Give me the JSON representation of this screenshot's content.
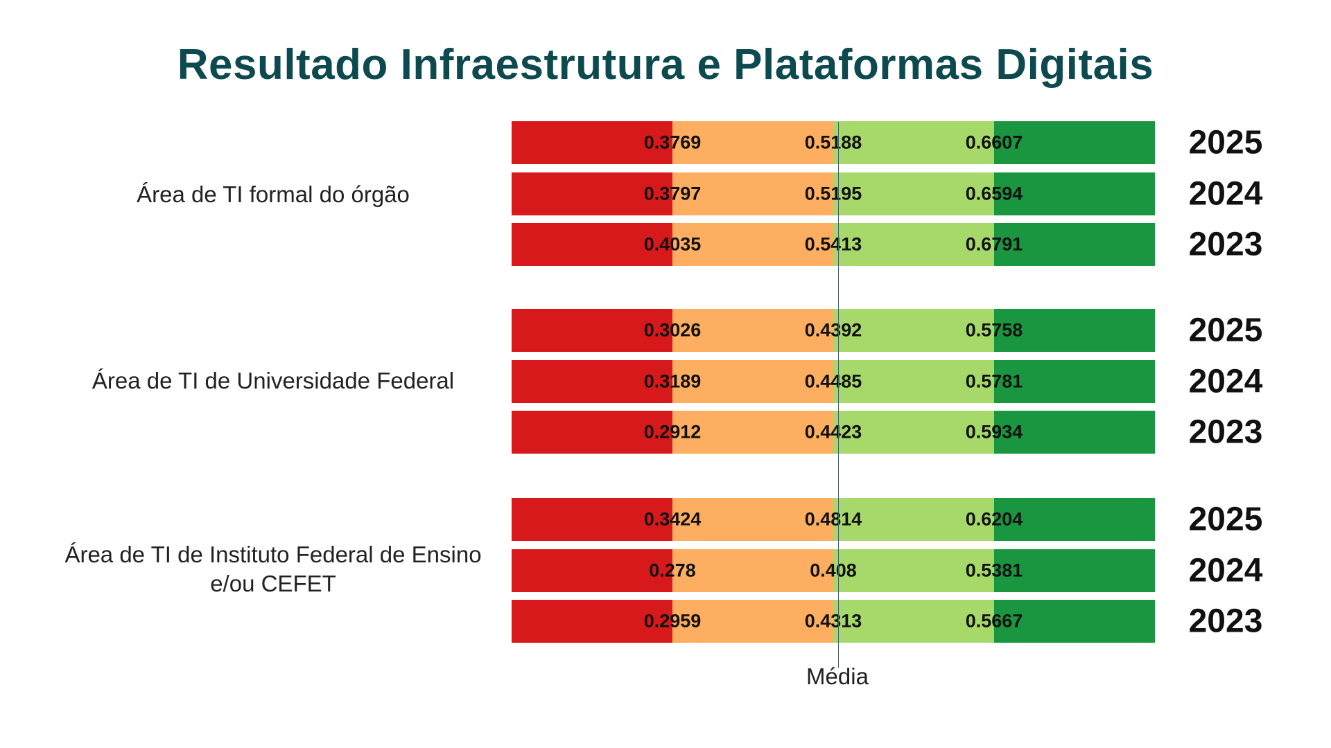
{
  "chart_data": {
    "type": "bar",
    "title": "Resultado Infraestrutura e Plataformas Digitais",
    "median_label": "Média",
    "segment_colors": [
      "#d7191c",
      "#fdae61",
      "#a6d96a",
      "#1a9641"
    ],
    "groups": [
      {
        "label": "Área de TI formal do órgão",
        "rows": [
          {
            "year": "2025",
            "values": [
              "0.3769",
              "0.5188",
              "0.6607"
            ]
          },
          {
            "year": "2024",
            "values": [
              "0.3797",
              "0.5195",
              "0.6594"
            ]
          },
          {
            "year": "2023",
            "values": [
              "0.4035",
              "0.5413",
              "0.6791"
            ]
          }
        ]
      },
      {
        "label": "Área de TI de Universidade Federal",
        "rows": [
          {
            "year": "2025",
            "values": [
              "0.3026",
              "0.4392",
              "0.5758"
            ]
          },
          {
            "year": "2024",
            "values": [
              "0.3189",
              "0.4485",
              "0.5781"
            ]
          },
          {
            "year": "2023",
            "values": [
              "0.2912",
              "0.4423",
              "0.5934"
            ]
          }
        ]
      },
      {
        "label": "Área de TI de Instituto Federal de Ensino e/ou CEFET",
        "rows": [
          {
            "year": "2025",
            "values": [
              "0.3424",
              "0.4814",
              "0.6204"
            ]
          },
          {
            "year": "2024",
            "values": [
              "0.278",
              "0.408",
              "0.5381"
            ]
          },
          {
            "year": "2023",
            "values": [
              "0.2959",
              "0.4313",
              "0.5667"
            ]
          }
        ]
      }
    ]
  }
}
